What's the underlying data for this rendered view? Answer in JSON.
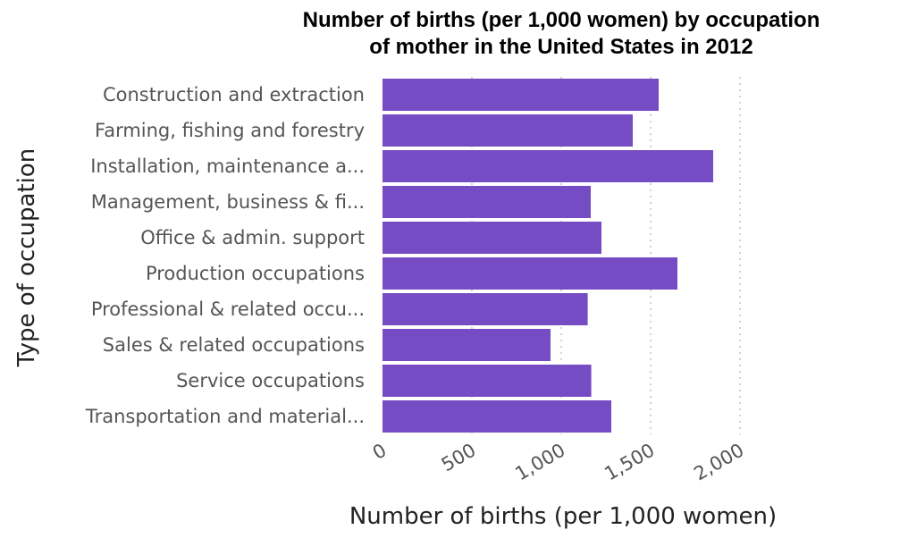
{
  "chart_data": {
    "type": "bar",
    "orientation": "horizontal",
    "title": "Number of births (per 1,000 women) by occupation of mother in the United States in 2012",
    "title_lines": [
      "Number of births (per 1,000 women) by occupation",
      "of mother in the United States in 2012"
    ],
    "xlabel": "Number of births (per 1,000 women)",
    "ylabel": "Type of occupation",
    "categories": [
      "Construction and extraction",
      "Farming, fishing and forestry",
      "Installation, maintenance a...",
      "Management, business & fi...",
      "Office & admin. support",
      "Production occupations",
      "Professional & related occu...",
      "Sales & related occupations",
      "Service occupations",
      "Transportation and material..."
    ],
    "values": [
      1545,
      1400,
      1850,
      1165,
      1225,
      1650,
      1148,
      940,
      1168,
      1280
    ],
    "xlim": [
      0,
      2000
    ],
    "xticks": [
      0,
      500,
      1000,
      1500,
      2000
    ],
    "xtick_labels": [
      "0",
      "500",
      "1,000",
      "1,500",
      "2,000"
    ],
    "grid": "vertical dotted",
    "legend": "none",
    "bar_color": "#754cc3"
  }
}
